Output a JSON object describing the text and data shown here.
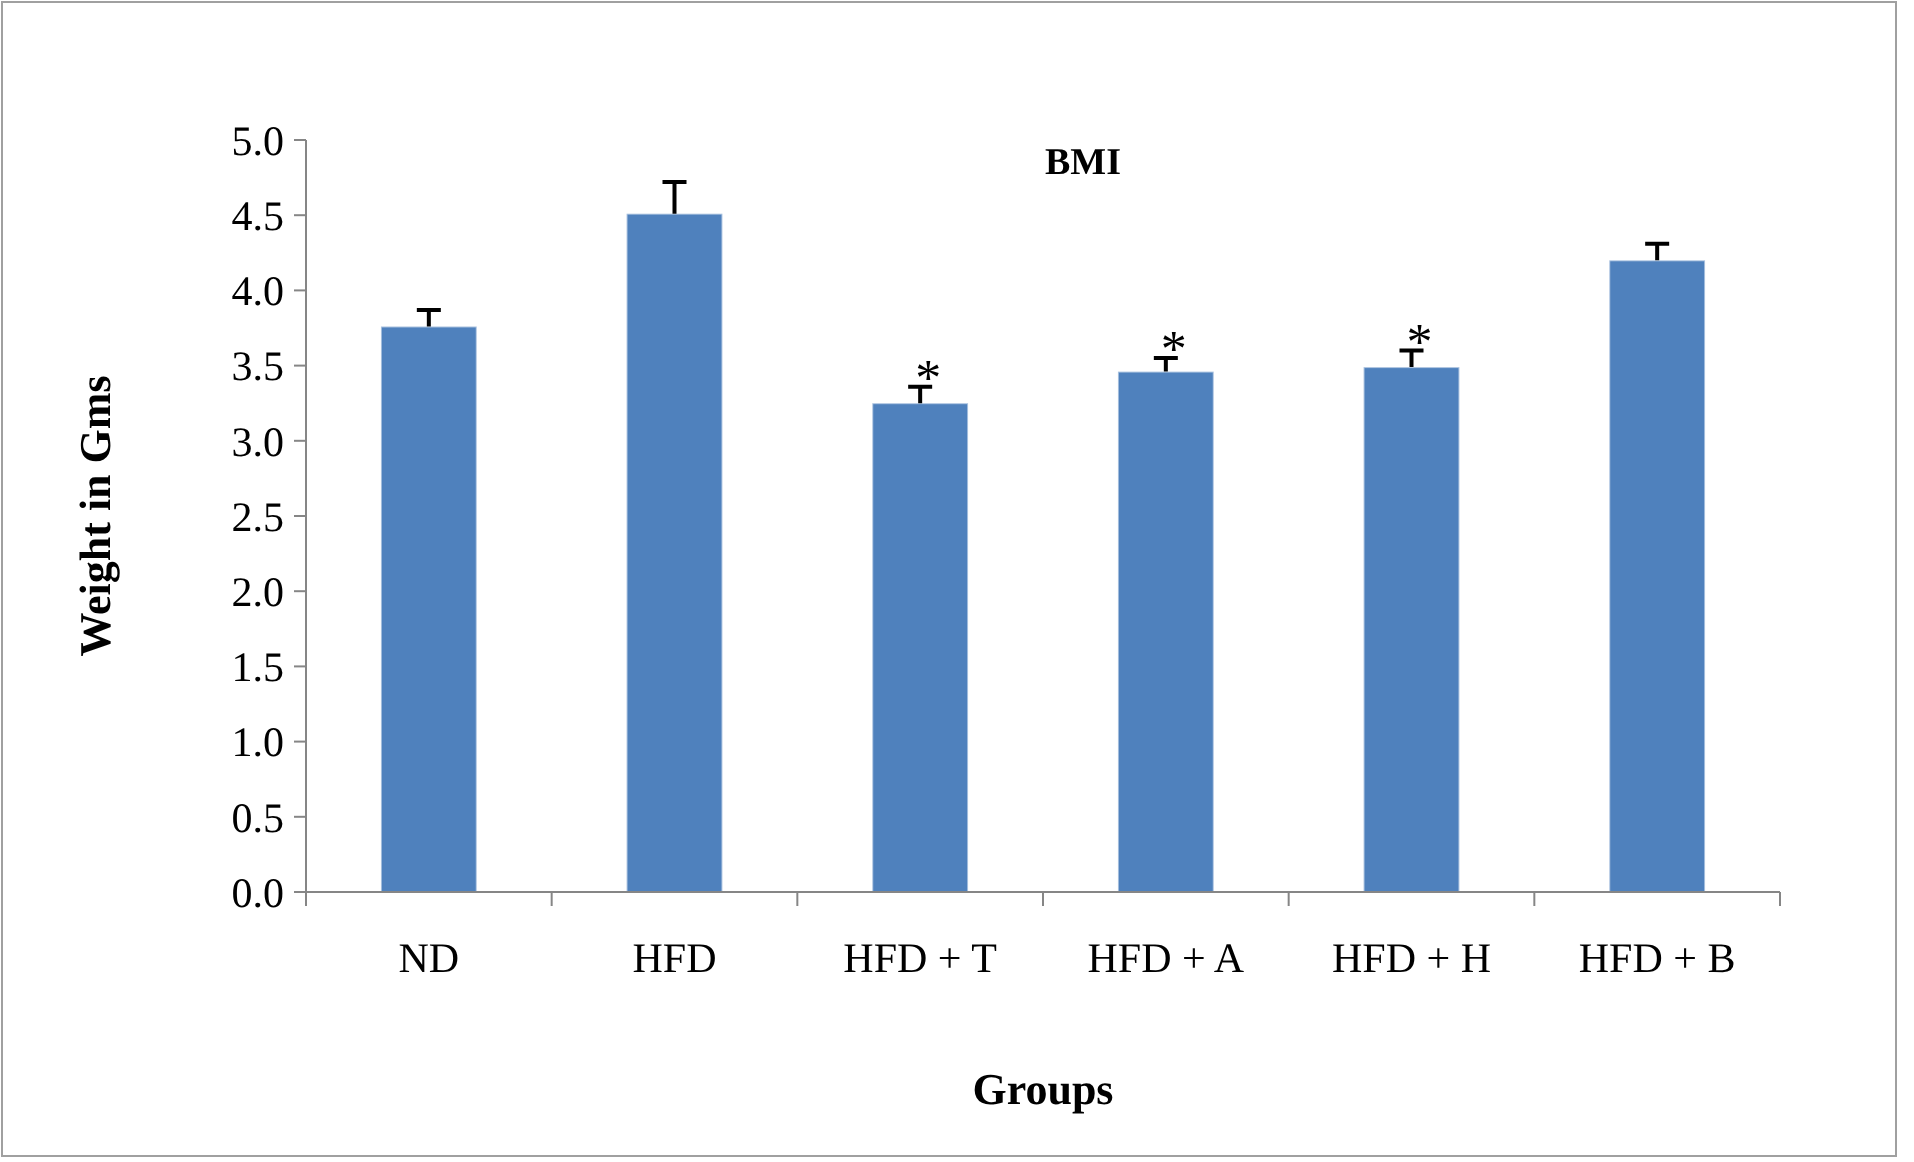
{
  "chart_data": {
    "type": "bar",
    "title": "BMI",
    "xlabel": "Groups",
    "ylabel": "Weight in Gms",
    "categories": [
      "ND",
      "HFD",
      "HFD + T",
      "HFD + A",
      "HFD + H",
      "HFD + B"
    ],
    "values": [
      3.76,
      4.51,
      3.25,
      3.46,
      3.49,
      4.2
    ],
    "errors": [
      [
        3.76,
        3.87
      ],
      [
        4.51,
        4.72
      ],
      [
        3.25,
        3.36
      ],
      [
        3.46,
        3.55
      ],
      [
        3.49,
        3.6
      ],
      [
        4.2,
        4.31
      ]
    ],
    "color": "#4f81bd",
    "ylim": [
      0,
      5
    ],
    "yticks": [
      {
        "value": 0,
        "label": "0.0"
      },
      {
        "value": 0.5,
        "label": "0.5"
      },
      {
        "value": 1,
        "label": "1.0"
      },
      {
        "value": 1.5,
        "label": "1.5"
      },
      {
        "value": 2,
        "label": "2.0"
      },
      {
        "value": 2.5,
        "label": "2.5"
      },
      {
        "value": 3,
        "label": "3.0"
      },
      {
        "value": 3.5,
        "label": "3.5"
      },
      {
        "value": 4,
        "label": "4.0"
      },
      {
        "value": 4.5,
        "label": "4.5"
      },
      {
        "value": 5,
        "label": "5.0"
      }
    ],
    "annotations": [
      {
        "text": "*",
        "x": "HFD + T",
        "y": 3.36
      },
      {
        "text": "*",
        "x": "HFD + A",
        "y": 3.55
      },
      {
        "text": "*",
        "x": "HFD + H",
        "y": 3.6
      }
    ]
  }
}
